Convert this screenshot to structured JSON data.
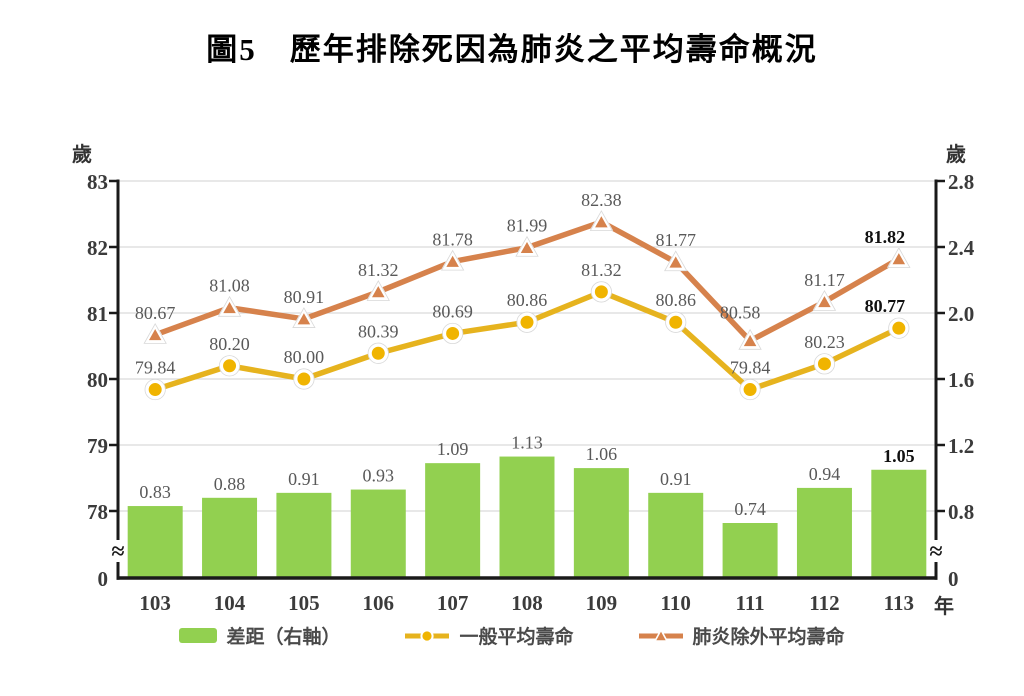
{
  "title": "圖5　歷年排除死因為肺炎之平均壽命概況",
  "axes": {
    "left_unit": "歲",
    "right_unit": "歲",
    "x_unit": "年",
    "left_ticks": [
      "83",
      "82",
      "81",
      "80",
      "79",
      "78"
    ],
    "left_zero": "0",
    "right_ticks": [
      "2.8",
      "2.4",
      "2.0",
      "1.6",
      "1.2",
      "0.8"
    ],
    "right_zero": "0",
    "break_symbol": "≈"
  },
  "palette": {
    "grid": "#D9D9D9",
    "axis": "#1A1A1A",
    "label_gray": "#595959",
    "tick_label": "#3B3B3B",
    "emphasis": "#111111"
  },
  "chart_data": {
    "type": "combo",
    "categories": [
      "103",
      "104",
      "105",
      "106",
      "107",
      "108",
      "109",
      "110",
      "111",
      "112",
      "113"
    ],
    "series": [
      {
        "name": "差距（右軸）",
        "type": "bar",
        "axis": "right",
        "color": "#92D050",
        "values": [
          0.83,
          0.88,
          0.91,
          0.93,
          1.09,
          1.13,
          1.06,
          0.91,
          0.74,
          0.94,
          1.05
        ]
      },
      {
        "name": "一般平均壽命",
        "type": "line",
        "axis": "left",
        "color": "#E6B31E",
        "marker": "circle",
        "marker_fill": "#F0B400",
        "values": [
          79.84,
          80.2,
          80.0,
          80.39,
          80.69,
          80.86,
          81.32,
          80.86,
          79.84,
          80.23,
          80.77
        ]
      },
      {
        "name": "肺炎除外平均壽命",
        "type": "line",
        "axis": "left",
        "color": "#D6824C",
        "marker": "triangle",
        "marker_fill": "#D6824C",
        "values": [
          80.67,
          81.08,
          80.91,
          81.32,
          81.78,
          81.99,
          82.38,
          81.77,
          80.58,
          81.17,
          81.82
        ]
      }
    ],
    "title": "圖5　歷年排除死因為肺炎之平均壽命概況",
    "xlabel": "年",
    "left_ylabel": "歲",
    "right_ylabel": "歲",
    "left_axis_ticks": [
      83,
      82,
      81,
      80,
      79,
      78,
      0
    ],
    "right_axis_ticks": [
      2.8,
      2.4,
      2.0,
      1.6,
      1.2,
      0.8,
      0
    ],
    "axis_break": true,
    "grid": true,
    "legend_position": "bottom",
    "last_point_emphasized": true
  }
}
